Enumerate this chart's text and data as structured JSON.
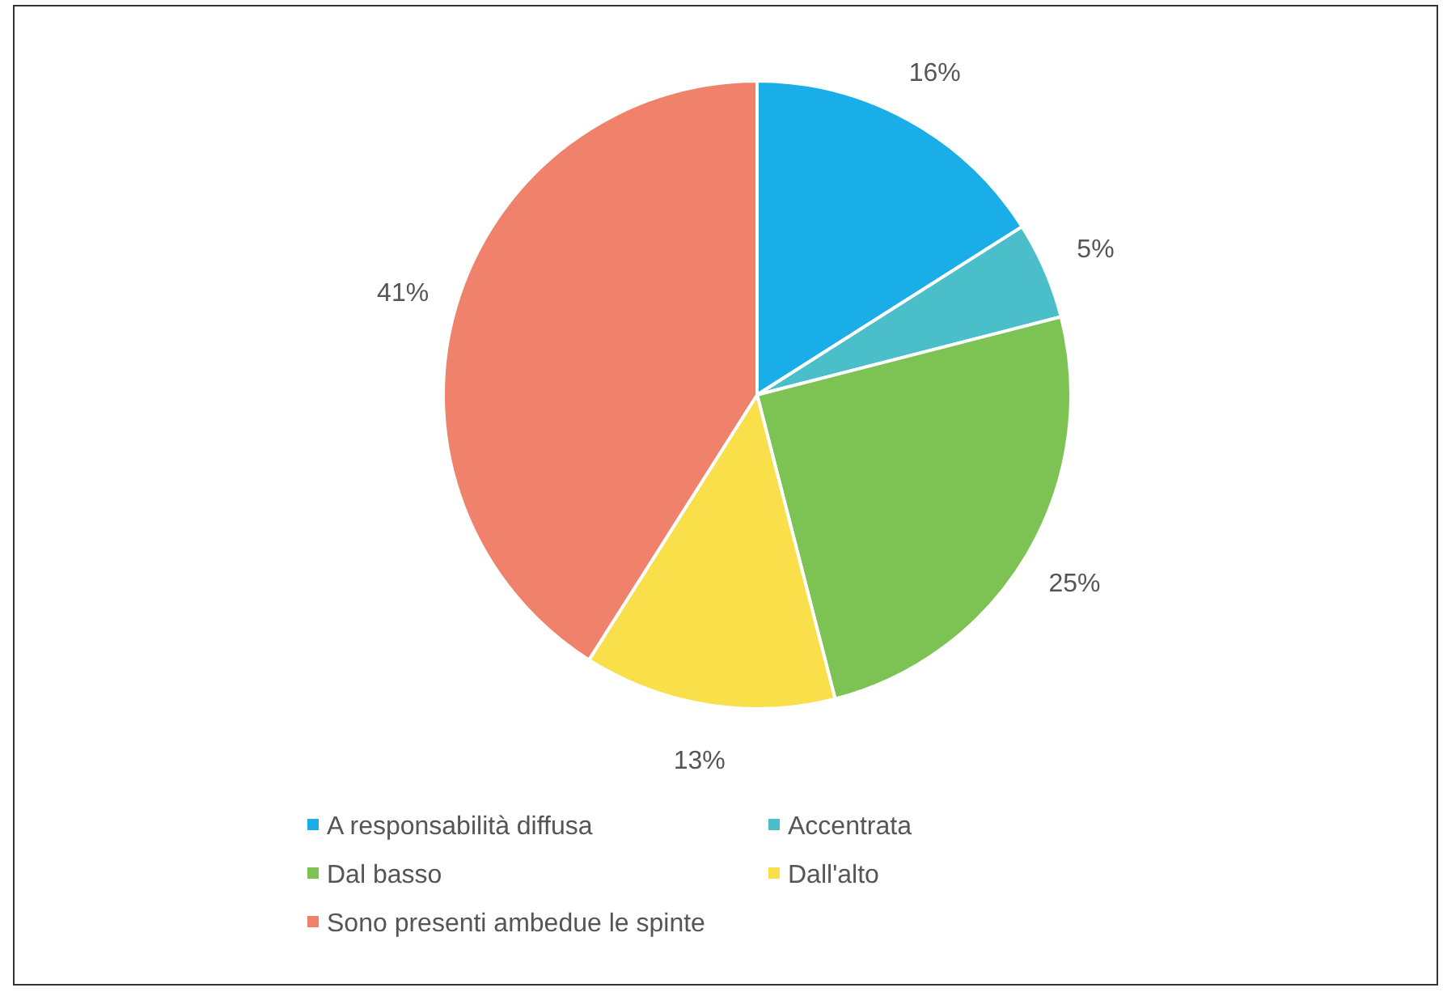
{
  "chart_data": {
    "type": "pie",
    "categories": [
      "A responsabilità diffusa",
      "Accentrata",
      "Dal basso",
      "Dall'alto",
      "Sono presenti ambedue le spinte"
    ],
    "values": [
      16,
      5,
      25,
      13,
      41
    ],
    "value_labels": [
      "16%",
      "5%",
      "25%",
      "13%",
      "41%"
    ],
    "colors": [
      "#1aaee8",
      "#4bbfc9",
      "#7cc353",
      "#f9df4a",
      "#f0826c"
    ],
    "legend": "bottom"
  }
}
